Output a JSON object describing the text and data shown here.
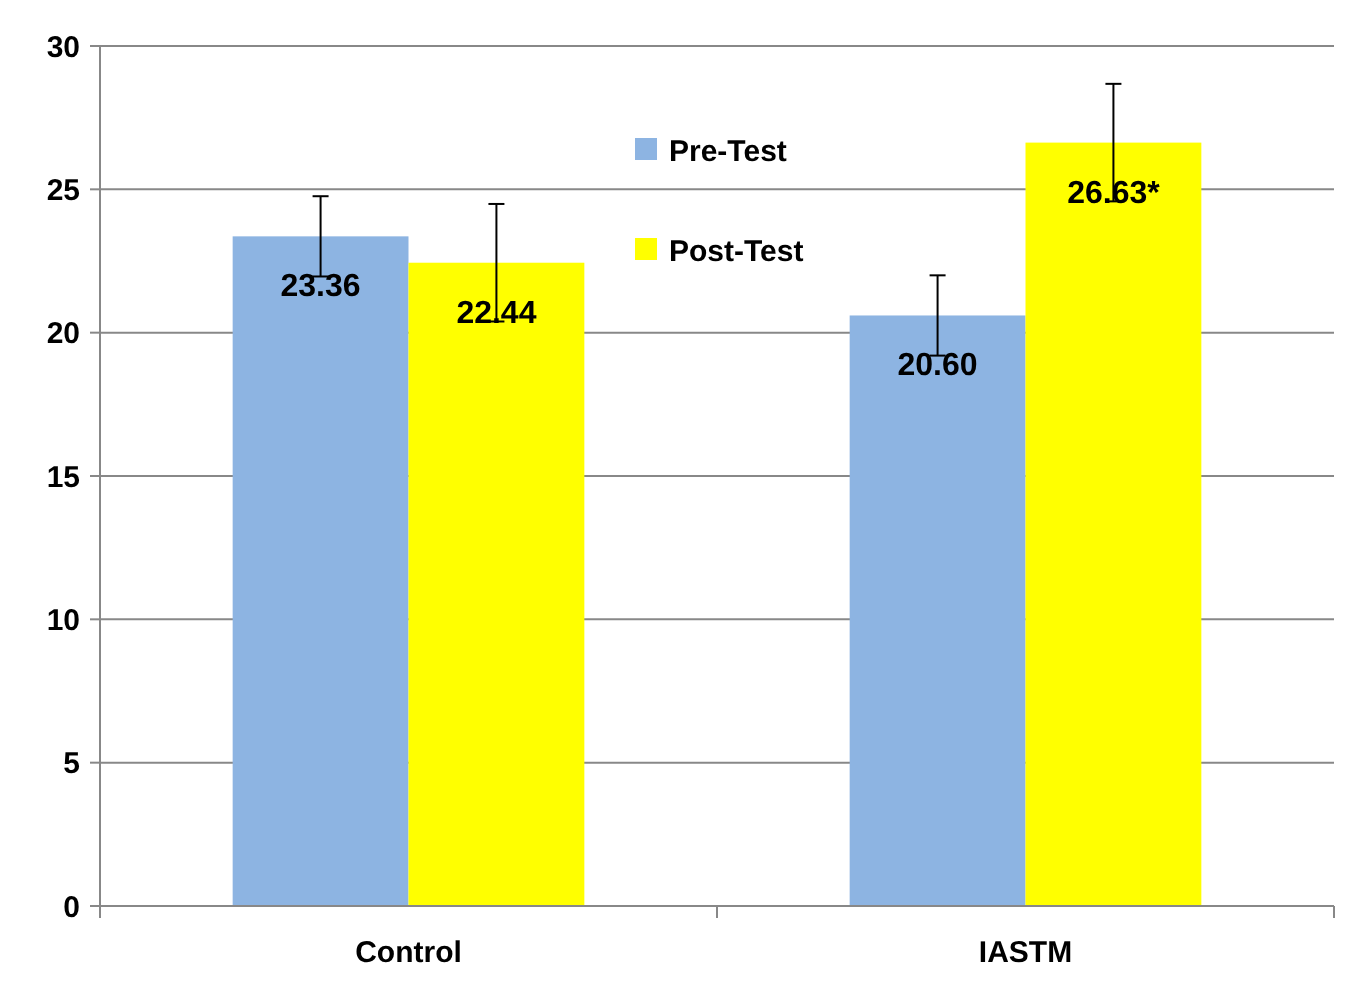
{
  "chart_data": {
    "type": "bar",
    "categories": [
      "Control",
      "IASTM"
    ],
    "series": [
      {
        "name": "Pre-Test",
        "color": "#8db4e2",
        "values": [
          23.36,
          20.6
        ],
        "errors": [
          1.4,
          1.4
        ],
        "value_labels": [
          "23.36",
          "20.60"
        ]
      },
      {
        "name": "Post-Test",
        "color": "#ffff00",
        "values": [
          22.44,
          26.63
        ],
        "errors": [
          2.05,
          2.05
        ],
        "value_labels": [
          "22.44",
          "26.63*"
        ]
      }
    ],
    "ylim": [
      0,
      30
    ],
    "yticks": [
      0,
      5,
      10,
      15,
      20,
      25,
      30
    ],
    "grid": "y",
    "legend": "top"
  }
}
